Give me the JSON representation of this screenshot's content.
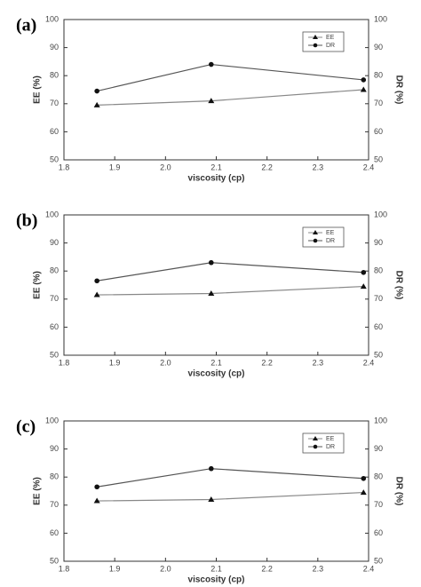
{
  "chart_data": [
    {
      "type": "line",
      "title": "(a)",
      "x_label": "viscosity (cp)",
      "y_label": "EE (%)",
      "y2_label": "DR (%)",
      "x": [
        1.865,
        2.09,
        2.39
      ],
      "series": [
        {
          "name": "EE",
          "color": "#888888",
          "marker": "triangle",
          "values": [
            69.5,
            71,
            75
          ]
        },
        {
          "name": "DR",
          "color": "#555555",
          "marker": "circle",
          "axis": "y2",
          "values": [
            74.5,
            84,
            78.5
          ]
        }
      ],
      "xlim": [
        1.8,
        2.4
      ],
      "xticks": [
        1.8,
        1.9,
        {
          "value": 2,
          "label": "2.0"
        },
        2.1,
        2.2,
        2.3,
        2.4
      ],
      "ylim": [
        50,
        100
      ],
      "yticks": [
        50,
        60,
        70,
        80,
        90,
        100
      ],
      "y2lim": [
        50,
        100
      ],
      "y2ticks": [
        50,
        60,
        70,
        80,
        90,
        100
      ],
      "grid": false,
      "legend": "upper right"
    },
    {
      "type": "line",
      "title": "(b)",
      "x_label": "viscosity (cp)",
      "y_label": "EE (%)",
      "y2_label": "DR (%)",
      "x": [
        1.865,
        2.09,
        2.39
      ],
      "series": [
        {
          "name": "EE",
          "color": "#888888",
          "marker": "triangle",
          "values": [
            71.5,
            72,
            74.5
          ]
        },
        {
          "name": "DR",
          "color": "#555555",
          "marker": "circle",
          "axis": "y2",
          "values": [
            76.5,
            83,
            79.5
          ]
        }
      ],
      "xlim": [
        1.8,
        2.4
      ],
      "xticks": [
        1.8,
        1.9,
        {
          "value": 2,
          "label": "2.0"
        },
        2.1,
        2.2,
        2.3,
        2.4
      ],
      "ylim": [
        50,
        100
      ],
      "yticks": [
        50,
        60,
        70,
        80,
        90,
        100
      ],
      "y2lim": [
        50,
        100
      ],
      "y2ticks": [
        50,
        60,
        70,
        80,
        90,
        100
      ],
      "grid": false,
      "legend": "upper right"
    },
    {
      "type": "line",
      "title": "(c)",
      "x_label": "viscosity (cp)",
      "y_label": "EE (%)",
      "y2_label": "DR (%)",
      "x": [
        1.865,
        2.09,
        2.39
      ],
      "series": [
        {
          "name": "EE",
          "color": "#888888",
          "marker": "triangle",
          "values": [
            71.5,
            72,
            74.5
          ]
        },
        {
          "name": "DR",
          "color": "#555555",
          "marker": "circle",
          "axis": "y2",
          "values": [
            76.5,
            83,
            79.5
          ]
        }
      ],
      "xlim": [
        1.8,
        2.4
      ],
      "xticks": [
        1.8,
        1.9,
        {
          "value": 2,
          "label": "2.0"
        },
        2.1,
        2.2,
        2.3,
        2.4
      ],
      "ylim": [
        50,
        100
      ],
      "yticks": [
        50,
        60,
        70,
        80,
        90,
        100
      ],
      "y2lim": [
        50,
        100
      ],
      "y2ticks": [
        50,
        60,
        70,
        80,
        90,
        100
      ],
      "grid": false,
      "legend": "upper right"
    }
  ]
}
